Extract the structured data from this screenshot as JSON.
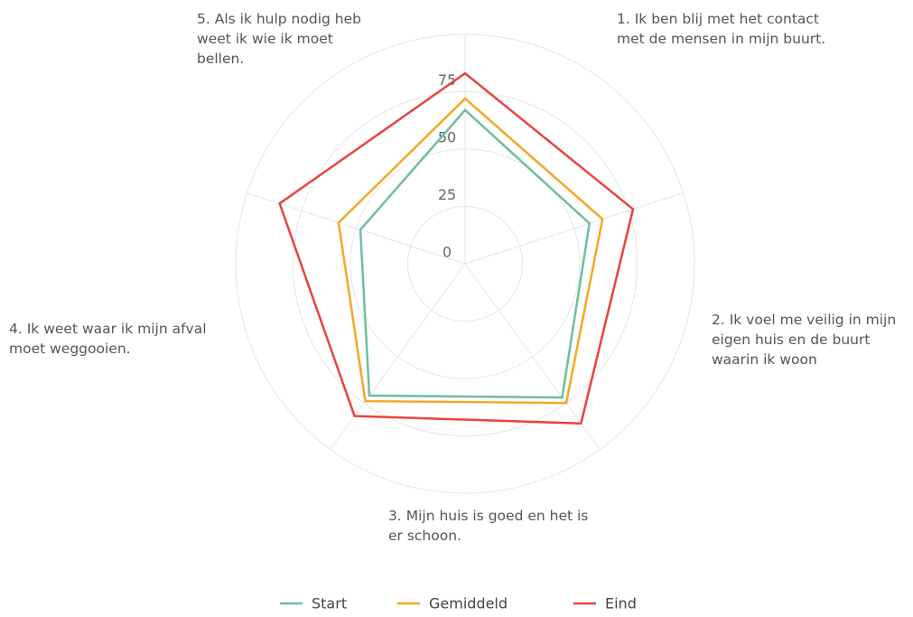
{
  "chart_data": {
    "type": "radar",
    "categories": [
      "1. Ik ben blij met het contact met de mensen in mijn buurt.",
      "2. Ik voel me veilig in mijn eigen huis en de buurt waarin ik woon",
      "3. Mijn huis is goed en het is er schoon.",
      "4. Ik weet waar ik mijn afval moet weggooien.",
      "5. Als ik hulp nodig heb weet ik wie ik moet bellen."
    ],
    "series": [
      {
        "name": "Start",
        "color": "#6dbf9d",
        "values": [
          57,
          72,
          71,
          48,
          67
        ]
      },
      {
        "name": "Gemiddeld",
        "color": "#f5a623",
        "values": [
          63,
          75,
          74,
          58,
          72
        ]
      },
      {
        "name": "Eind",
        "color": "#e8423f",
        "values": [
          77,
          86,
          82,
          85,
          83
        ]
      }
    ],
    "ylim": [
      0,
      100
    ],
    "yticks": [
      0,
      25,
      50,
      75
    ],
    "grid": true
  }
}
